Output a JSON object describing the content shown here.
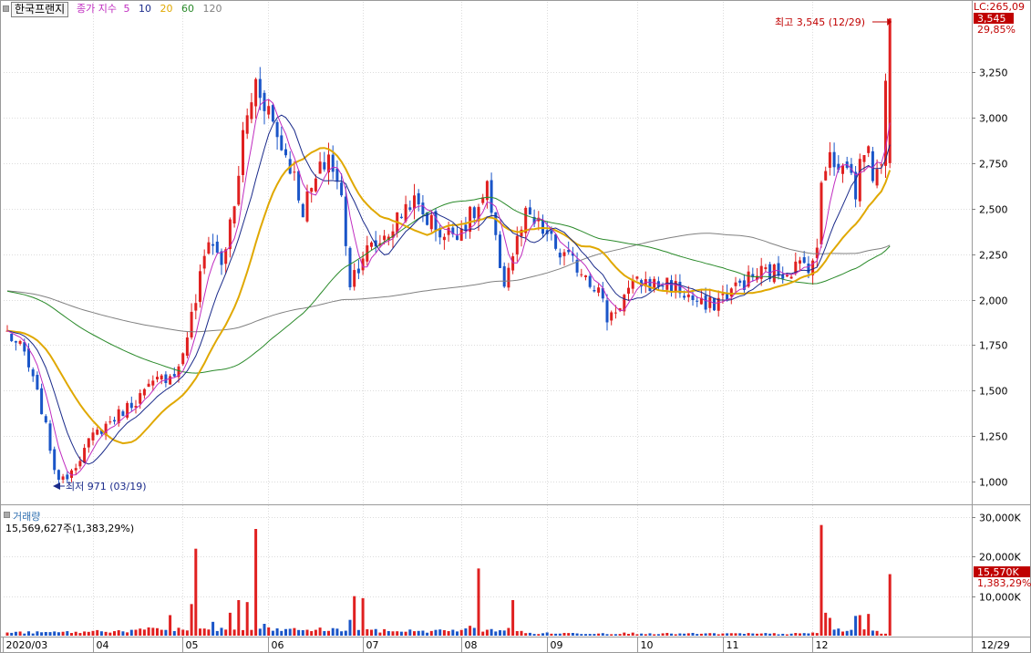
{
  "stock_name": "한국프랜지",
  "ma_legend": {
    "label": "종가 지수",
    "periods": [
      {
        "label": "5",
        "color": "#c02cc0"
      },
      {
        "label": "10",
        "color": "#1a2a8a"
      },
      {
        "label": "20",
        "color": "#e0a800"
      },
      {
        "label": "60",
        "color": "#2a8a2a"
      },
      {
        "label": "120",
        "color": "#808080"
      }
    ]
  },
  "lc_label": "LC:265,09",
  "annotations": {
    "high": "최고 3,545 (12/29)",
    "low": "최저 971 (03/19)",
    "price_badge": "3,545",
    "price_pct": "29,85%",
    "vol_badge": "15,570K",
    "vol_pct": "1,383,29%"
  },
  "volume_title": "거래량",
  "volume_sub": "15,569,627주(1,383,29%)",
  "x_axis": {
    "labels": [
      "2020/03",
      "04",
      "05",
      "06",
      "07",
      "08",
      "09",
      "10",
      "11",
      "12"
    ],
    "right_label": "12/29"
  },
  "colors": {
    "up": "#e02020",
    "down": "#1a55c8",
    "accent": "#c00000"
  },
  "chart_data": {
    "type": "candlestick",
    "price_ticks": [
      "3,250",
      "3,000",
      "2,750",
      "2,500",
      "2,250",
      "2,000",
      "1,750",
      "1,500",
      "1,250",
      "1,000"
    ],
    "price_tick_values": [
      3250,
      3000,
      2750,
      2500,
      2250,
      2000,
      1750,
      1500,
      1250,
      1000
    ],
    "volume_ticks": [
      "30,000K",
      "20,000K",
      "10,000K"
    ],
    "volume_tick_values": [
      30000,
      20000,
      10000
    ],
    "price_range": [
      1000,
      3545
    ],
    "volume_max": 30000,
    "x_months": [
      {
        "label": "2020/03",
        "start_day": 0
      },
      {
        "label": "04",
        "start_day": 21
      },
      {
        "label": "05",
        "start_day": 42
      },
      {
        "label": "06",
        "start_day": 62
      },
      {
        "label": "07",
        "start_day": 84
      },
      {
        "label": "08",
        "start_day": 107
      },
      {
        "label": "09",
        "start_day": 127
      },
      {
        "label": "10",
        "start_day": 148
      },
      {
        "label": "11",
        "start_day": 168
      },
      {
        "label": "12",
        "start_day": 189
      }
    ],
    "anchors": [
      [
        0,
        1820
      ],
      [
        4,
        1700
      ],
      [
        8,
        1400
      ],
      [
        11,
        1080
      ],
      [
        12,
        971
      ],
      [
        16,
        1100
      ],
      [
        20,
        1250
      ],
      [
        25,
        1350
      ],
      [
        30,
        1450
      ],
      [
        35,
        1550
      ],
      [
        40,
        1620
      ],
      [
        44,
        2000
      ],
      [
        47,
        2350
      ],
      [
        50,
        2200
      ],
      [
        53,
        2500
      ],
      [
        55,
        2900
      ],
      [
        58,
        3200
      ],
      [
        61,
        3050
      ],
      [
        63,
        2900
      ],
      [
        66,
        2750
      ],
      [
        69,
        2500
      ],
      [
        72,
        2650
      ],
      [
        75,
        2800
      ],
      [
        78,
        2550
      ],
      [
        80,
        2100
      ],
      [
        83,
        2250
      ],
      [
        86,
        2300
      ],
      [
        90,
        2400
      ],
      [
        94,
        2550
      ],
      [
        98,
        2450
      ],
      [
        102,
        2350
      ],
      [
        106,
        2400
      ],
      [
        110,
        2500
      ],
      [
        112,
        2600
      ],
      [
        114,
        2300
      ],
      [
        116,
        2100
      ],
      [
        118,
        2250
      ],
      [
        121,
        2450
      ],
      [
        124,
        2400
      ],
      [
        126,
        2350
      ],
      [
        129,
        2250
      ],
      [
        132,
        2200
      ],
      [
        135,
        2150
      ],
      [
        138,
        2050
      ],
      [
        140,
        1900
      ],
      [
        142,
        1950
      ],
      [
        145,
        2050
      ],
      [
        148,
        2100
      ],
      [
        151,
        2080
      ],
      [
        154,
        2100
      ],
      [
        157,
        2050
      ],
      [
        160,
        2000
      ],
      [
        163,
        1950
      ],
      [
        166,
        2000
      ],
      [
        169,
        2050
      ],
      [
        172,
        2100
      ],
      [
        176,
        2150
      ],
      [
        180,
        2150
      ],
      [
        184,
        2180
      ],
      [
        187,
        2200
      ],
      [
        189,
        2250
      ],
      [
        190,
        2650
      ],
      [
        192,
        2850
      ],
      [
        194,
        2700
      ],
      [
        196,
        2750
      ],
      [
        198,
        2600
      ],
      [
        200,
        2850
      ],
      [
        202,
        2700
      ],
      [
        204,
        2800
      ],
      [
        206,
        3545
      ]
    ],
    "volume_profile": [
      [
        0,
        800
      ],
      [
        10,
        900
      ],
      [
        20,
        1200
      ],
      [
        30,
        1500
      ],
      [
        38,
        5200
      ],
      [
        40,
        2000
      ],
      [
        43,
        8000
      ],
      [
        44,
        22000
      ],
      [
        45,
        1800
      ],
      [
        48,
        3500
      ],
      [
        52,
        5800
      ],
      [
        54,
        9000
      ],
      [
        56,
        8500
      ],
      [
        58,
        27000
      ],
      [
        60,
        3000
      ],
      [
        70,
        1500
      ],
      [
        80,
        4000
      ],
      [
        81,
        10000
      ],
      [
        83,
        9500
      ],
      [
        85,
        1500
      ],
      [
        96,
        1200
      ],
      [
        104,
        1500
      ],
      [
        108,
        2500
      ],
      [
        110,
        17000
      ],
      [
        112,
        1500
      ],
      [
        118,
        9000
      ],
      [
        120,
        1200
      ],
      [
        150,
        600
      ],
      [
        175,
        500
      ],
      [
        188,
        800
      ],
      [
        190,
        28000
      ],
      [
        191,
        5800
      ],
      [
        192,
        4500
      ],
      [
        194,
        1800
      ],
      [
        196,
        1200
      ],
      [
        198,
        5000
      ],
      [
        199,
        5200
      ],
      [
        201,
        5500
      ],
      [
        203,
        1200
      ],
      [
        204,
        500
      ],
      [
        205,
        15570
      ],
      [
        206,
        15570
      ]
    ]
  }
}
